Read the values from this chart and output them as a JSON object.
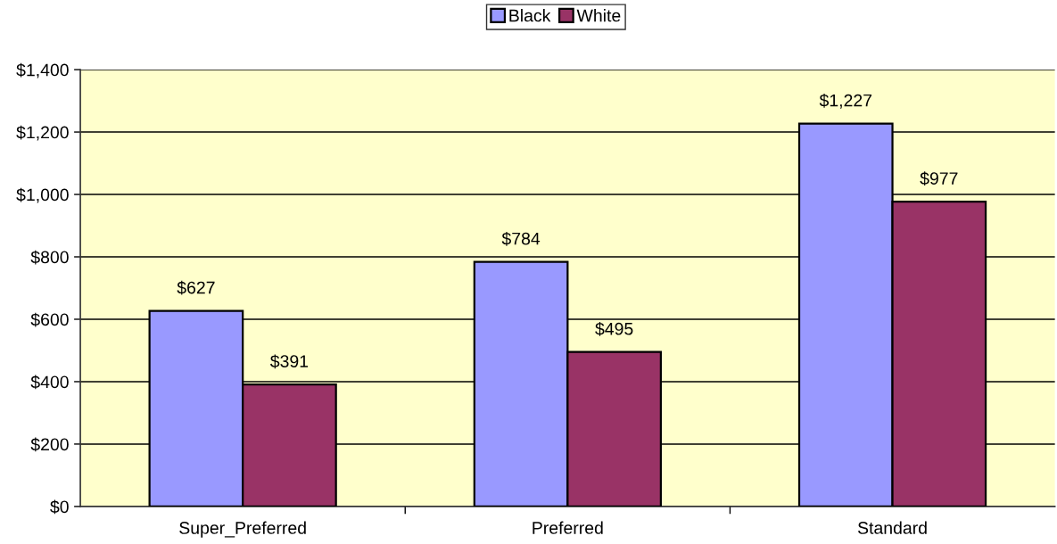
{
  "chart_data": {
    "type": "bar",
    "categories": [
      "Super_Preferred",
      "Preferred",
      "Standard"
    ],
    "series": [
      {
        "name": "Black",
        "color": "#9999ff",
        "values": [
          627,
          784,
          1227
        ],
        "value_labels": [
          "$627",
          "$784",
          "$1,227"
        ]
      },
      {
        "name": "White",
        "color": "#993366",
        "values": [
          391,
          495,
          977
        ],
        "value_labels": [
          "$391",
          "$495",
          "$977"
        ]
      }
    ],
    "ylim": [
      0,
      1400
    ],
    "yticks": [
      {
        "value": 0,
        "label": "$0"
      },
      {
        "value": 200,
        "label": "$200"
      },
      {
        "value": 400,
        "label": "$400"
      },
      {
        "value": 600,
        "label": "$600"
      },
      {
        "value": 800,
        "label": "$800"
      },
      {
        "value": 1000,
        "label": "$1,000"
      },
      {
        "value": 1200,
        "label": "$1,200"
      },
      {
        "value": 1400,
        "label": "$1,400"
      }
    ],
    "grid": "y",
    "legend": "top"
  }
}
